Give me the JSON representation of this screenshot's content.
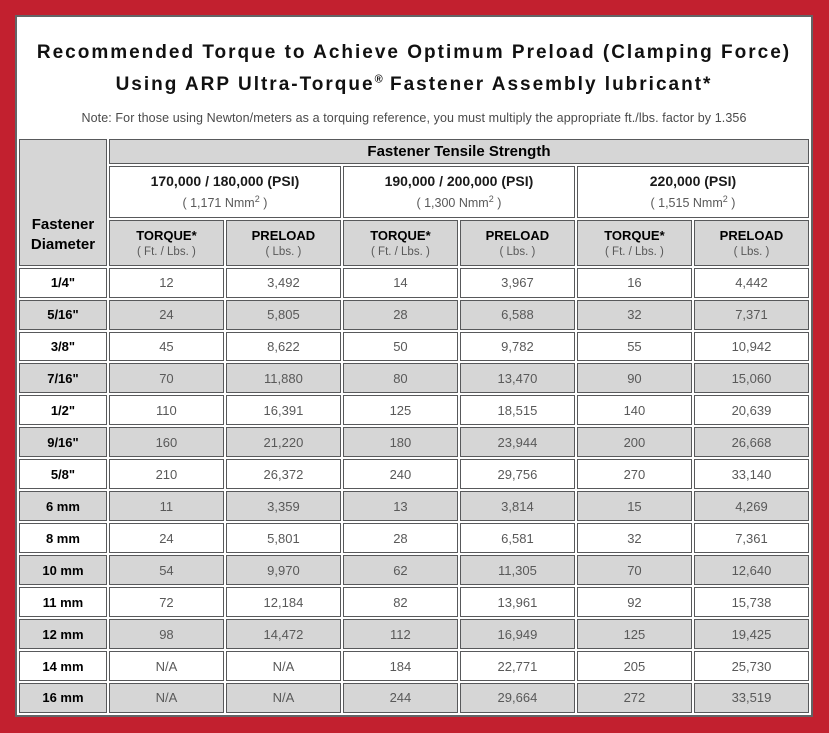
{
  "colors": {
    "border_red": "#c2202f",
    "frame_gray": "#636466",
    "row_shade_gray": "#d6d6d6",
    "data_text_gray": "#595959"
  },
  "title": {
    "line1": "Recommended Torque to Achieve Optimum Preload (Clamping Force)",
    "line2_pre": "Using ARP Ultra-Torque",
    "line2_sup": "®",
    "line2_post": " Fastener Assembly lubricant*",
    "note": "Note: For those using Newton/meters as a torquing reference, you must multiply the appropriate ft./lbs. factor by 1.356"
  },
  "table": {
    "corner_label_line1": "Fastener",
    "corner_label_line2": "Diameter",
    "main_header": "Fastener Tensile Strength",
    "strength_groups": [
      {
        "psi": "170,000 / 180,000 (PSI)",
        "nmm_pre": "( 1,171 Nmm",
        "nmm_sup": "2",
        "nmm_post": " )"
      },
      {
        "psi": "190,000 / 200,000 (PSI)",
        "nmm_pre": "( 1,300 Nmm",
        "nmm_sup": "2",
        "nmm_post": " )"
      },
      {
        "psi": "220,000 (PSI)",
        "nmm_pre": "( 1,515 Nmm",
        "nmm_sup": "2",
        "nmm_post": " )"
      }
    ],
    "col_headers": {
      "torque_label": "TORQUE*",
      "torque_sub": "( Ft. / Lbs. )",
      "preload_label": "PRELOAD",
      "preload_sub": "( Lbs. )"
    },
    "rows": [
      {
        "diameter": "1/4\"",
        "values": [
          "12",
          "3,492",
          "14",
          "3,967",
          "16",
          "4,442"
        ]
      },
      {
        "diameter": "5/16\"",
        "values": [
          "24",
          "5,805",
          "28",
          "6,588",
          "32",
          "7,371"
        ]
      },
      {
        "diameter": "3/8\"",
        "values": [
          "45",
          "8,622",
          "50",
          "9,782",
          "55",
          "10,942"
        ]
      },
      {
        "diameter": "7/16\"",
        "values": [
          "70",
          "11,880",
          "80",
          "13,470",
          "90",
          "15,060"
        ]
      },
      {
        "diameter": "1/2\"",
        "values": [
          "110",
          "16,391",
          "125",
          "18,515",
          "140",
          "20,639"
        ]
      },
      {
        "diameter": "9/16\"",
        "values": [
          "160",
          "21,220",
          "180",
          "23,944",
          "200",
          "26,668"
        ]
      },
      {
        "diameter": "5/8\"",
        "values": [
          "210",
          "26,372",
          "240",
          "29,756",
          "270",
          "33,140"
        ]
      },
      {
        "diameter": "6 mm",
        "values": [
          "11",
          "3,359",
          "13",
          "3,814",
          "15",
          "4,269"
        ]
      },
      {
        "diameter": "8 mm",
        "values": [
          "24",
          "5,801",
          "28",
          "6,581",
          "32",
          "7,361"
        ]
      },
      {
        "diameter": "10 mm",
        "values": [
          "54",
          "9,970",
          "62",
          "11,305",
          "70",
          "12,640"
        ]
      },
      {
        "diameter": "11 mm",
        "values": [
          "72",
          "12,184",
          "82",
          "13,961",
          "92",
          "15,738"
        ]
      },
      {
        "diameter": "12 mm",
        "values": [
          "98",
          "14,472",
          "112",
          "16,949",
          "125",
          "19,425"
        ]
      },
      {
        "diameter": "14 mm",
        "values": [
          "N/A",
          "N/A",
          "184",
          "22,771",
          "205",
          "25,730"
        ]
      },
      {
        "diameter": "16 mm",
        "values": [
          "N/A",
          "N/A",
          "244",
          "29,664",
          "272",
          "33,519"
        ]
      }
    ]
  }
}
